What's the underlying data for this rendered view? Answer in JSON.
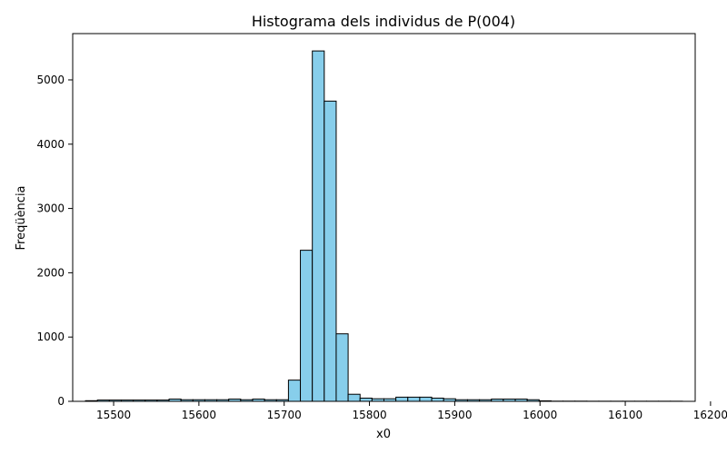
{
  "chart_data": {
    "type": "bar",
    "title": "Histograma dels individus de P(004)",
    "xlabel": "x0",
    "ylabel": "Freqüència",
    "xlim": [
      15452,
      16182
    ],
    "ylim": [
      0,
      5720
    ],
    "x_ticks": [
      15500,
      15600,
      15700,
      15800,
      15900,
      16000,
      16100,
      16200
    ],
    "y_ticks": [
      0,
      1000,
      2000,
      3000,
      4000,
      5000
    ],
    "bin_start": 15467,
    "bin_width": 14,
    "values": [
      10,
      20,
      20,
      20,
      20,
      20,
      20,
      35,
      25,
      25,
      25,
      25,
      35,
      25,
      35,
      25,
      25,
      330,
      2350,
      5450,
      4670,
      1050,
      110,
      50,
      40,
      40,
      65,
      65,
      65,
      50,
      40,
      25,
      25,
      25,
      35,
      35,
      35,
      25,
      8,
      3,
      3,
      3,
      2,
      2,
      2,
      2,
      2,
      2,
      2,
      2
    ],
    "bar_color": "#87ceeb",
    "edge_color": "#000000",
    "grid": false
  }
}
